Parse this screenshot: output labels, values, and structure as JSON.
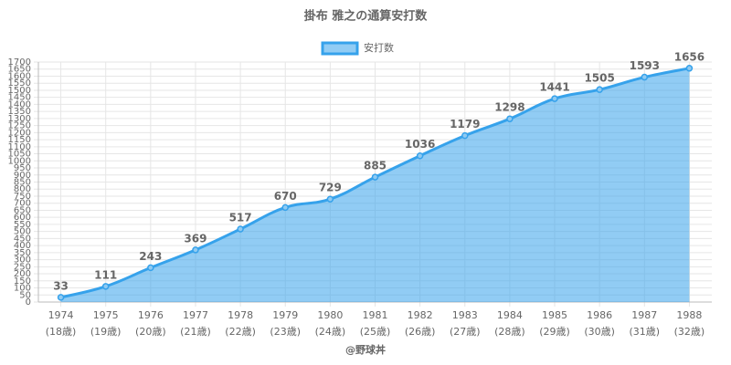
{
  "chart_data": {
    "type": "area",
    "title": "掛布 雅之の通算安打数",
    "footer": "@野球丼",
    "categories": [
      [
        "1974",
        "(18歳)"
      ],
      [
        "1975",
        "(19歳)"
      ],
      [
        "1976",
        "(20歳)"
      ],
      [
        "1977",
        "(21歳)"
      ],
      [
        "1978",
        "(22歳)"
      ],
      [
        "1979",
        "(23歳)"
      ],
      [
        "1980",
        "(24歳)"
      ],
      [
        "1981",
        "(25歳)"
      ],
      [
        "1982",
        "(26歳)"
      ],
      [
        "1983",
        "(27歳)"
      ],
      [
        "1984",
        "(28歳)"
      ],
      [
        "1985",
        "(29歳)"
      ],
      [
        "1986",
        "(30歳)"
      ],
      [
        "1987",
        "(31歳)"
      ],
      [
        "1988",
        "(32歳)"
      ]
    ],
    "series": [
      {
        "name": "安打数",
        "color": "#36a2eb",
        "values": [
          33,
          111,
          243,
          369,
          517,
          670,
          729,
          885,
          1036,
          1179,
          1298,
          1441,
          1505,
          1593,
          1656
        ]
      }
    ],
    "ylim": [
      0,
      1700
    ],
    "yticks": [
      0,
      50,
      100,
      150,
      200,
      250,
      300,
      350,
      400,
      450,
      500,
      550,
      600,
      650,
      700,
      750,
      800,
      850,
      900,
      950,
      1000,
      1050,
      1100,
      1150,
      1200,
      1250,
      1300,
      1350,
      1400,
      1450,
      1500,
      1550,
      1600,
      1650,
      1700
    ],
    "grid": true,
    "legend": "top"
  }
}
